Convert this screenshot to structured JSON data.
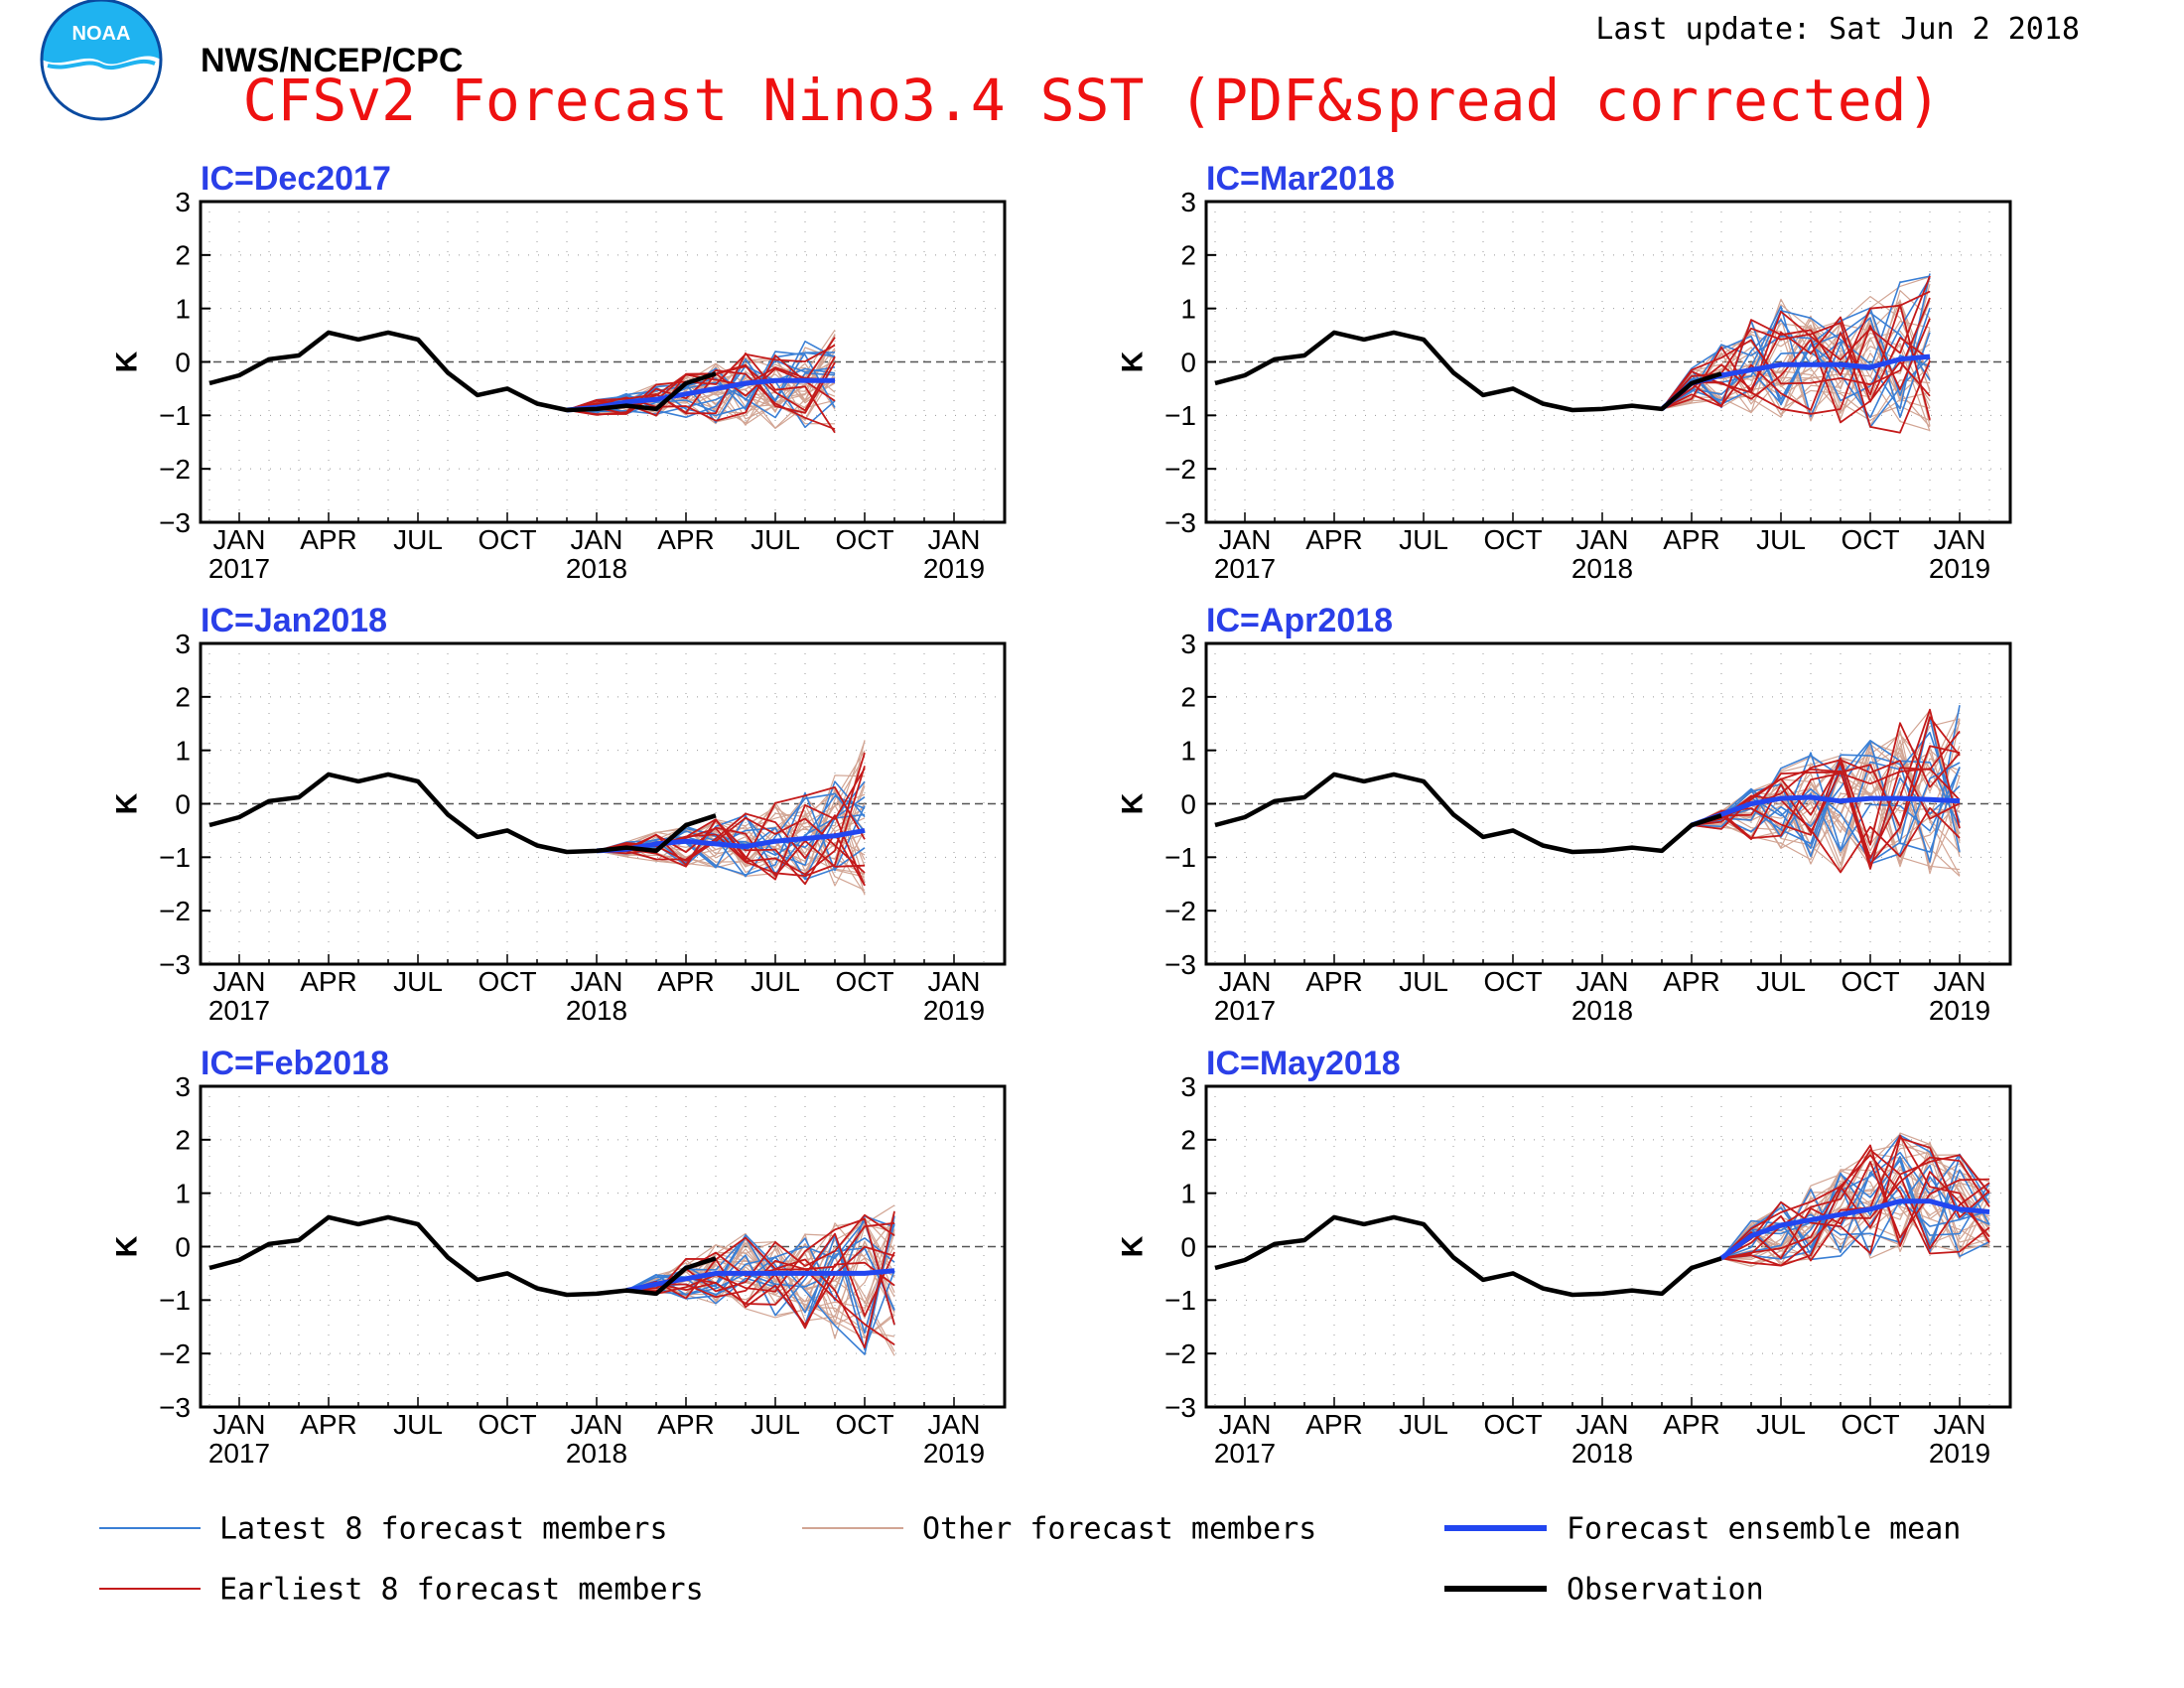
{
  "header": {
    "agency": "NWS/NCEP/CPC",
    "title": "CFSv2 Forecast Nino3.4 SST (PDF&spread corrected)",
    "last_update": "Last update: Sat Jun 2 2018",
    "logo_text": "NOAA",
    "title_color": "#ee1111",
    "ic_color": "#2a3fe8"
  },
  "legend": {
    "items": [
      {
        "label": "Latest 8 forecast members",
        "color": "#3a7fd5"
      },
      {
        "label": "Other forecast members",
        "color": "#d2a594"
      },
      {
        "label": "Forecast ensemble mean",
        "color": "#2246f0"
      },
      {
        "label": "Earliest 8 forecast members",
        "color": "#c41a1a"
      },
      {
        "label": "Observation",
        "color": "#000000"
      }
    ]
  },
  "chart_data": {
    "type": "line",
    "ylabel": "K",
    "ylim": [
      -3,
      3
    ],
    "yticks": [
      "3",
      "2",
      "1",
      "0",
      "−1",
      "−2",
      "−3"
    ],
    "x_month_labels": [
      "JAN",
      "APR",
      "JUL",
      "OCT",
      "JAN",
      "APR",
      "JUL",
      "OCT",
      "JAN"
    ],
    "x_year_labels": [
      "2017",
      "2018",
      "2019"
    ],
    "observation": {
      "name": "Observation",
      "x": [
        "2016-12",
        "2017-01",
        "2017-02",
        "2017-03",
        "2017-04",
        "2017-05",
        "2017-06",
        "2017-07",
        "2017-08",
        "2017-09",
        "2017-10",
        "2017-11",
        "2017-12",
        "2018-01",
        "2018-02",
        "2018-03",
        "2018-04",
        "2018-05"
      ],
      "values": [
        -0.4,
        -0.25,
        0.05,
        0.12,
        0.55,
        0.42,
        0.55,
        0.42,
        -0.2,
        -0.62,
        -0.5,
        -0.78,
        -0.9,
        -0.88,
        -0.82,
        -0.88,
        -0.4,
        -0.22
      ]
    },
    "panels": [
      {
        "ic": "IC=Dec2017",
        "forecast_x": [
          "2017-12",
          "2018-01",
          "2018-02",
          "2018-03",
          "2018-04",
          "2018-05",
          "2018-06",
          "2018-07",
          "2018-08",
          "2018-09"
        ],
        "ensemble_mean": [
          -0.9,
          -0.85,
          -0.75,
          -0.7,
          -0.6,
          -0.5,
          -0.4,
          -0.35,
          -0.35,
          -0.35
        ],
        "spread_lower": [
          -0.9,
          -1.0,
          -1.0,
          -1.05,
          -1.1,
          -1.2,
          -1.25,
          -1.3,
          -1.4,
          -1.5
        ],
        "spread_upper": [
          -0.9,
          -0.7,
          -0.55,
          -0.4,
          -0.2,
          0.0,
          0.2,
          0.35,
          0.5,
          0.7
        ]
      },
      {
        "ic": "IC=Mar2018",
        "forecast_x": [
          "2018-03",
          "2018-04",
          "2018-05",
          "2018-06",
          "2018-07",
          "2018-08",
          "2018-09",
          "2018-10",
          "2018-11",
          "2018-12"
        ],
        "ensemble_mean": [
          -0.88,
          -0.4,
          -0.25,
          -0.15,
          -0.05,
          -0.05,
          -0.05,
          -0.1,
          0.05,
          0.1
        ],
        "spread_lower": [
          -0.88,
          -0.8,
          -0.9,
          -1.0,
          -1.1,
          -1.2,
          -1.25,
          -1.3,
          -1.4,
          -1.5
        ],
        "spread_upper": [
          -0.88,
          -0.1,
          0.4,
          0.9,
          1.3,
          1.1,
          1.0,
          1.3,
          1.6,
          1.8
        ]
      },
      {
        "ic": "IC=Jan2018",
        "forecast_x": [
          "2018-01",
          "2018-02",
          "2018-03",
          "2018-04",
          "2018-05",
          "2018-06",
          "2018-07",
          "2018-08",
          "2018-09",
          "2018-10"
        ],
        "ensemble_mean": [
          -0.88,
          -0.85,
          -0.75,
          -0.7,
          -0.75,
          -0.8,
          -0.7,
          -0.65,
          -0.6,
          -0.5
        ],
        "spread_lower": [
          -0.88,
          -1.0,
          -1.1,
          -1.2,
          -1.3,
          -1.4,
          -1.5,
          -1.55,
          -1.7,
          -1.8
        ],
        "spread_upper": [
          -0.88,
          -0.7,
          -0.5,
          -0.35,
          -0.2,
          -0.1,
          0.1,
          0.3,
          0.6,
          1.4
        ]
      },
      {
        "ic": "IC=Apr2018",
        "forecast_x": [
          "2018-04",
          "2018-05",
          "2018-06",
          "2018-07",
          "2018-08",
          "2018-09",
          "2018-10",
          "2018-11",
          "2018-12",
          "2019-01"
        ],
        "ensemble_mean": [
          -0.4,
          -0.2,
          0.0,
          0.1,
          0.12,
          0.05,
          0.1,
          0.1,
          0.08,
          0.05
        ],
        "spread_lower": [
          -0.4,
          -0.5,
          -0.7,
          -0.9,
          -1.2,
          -1.4,
          -1.4,
          -1.3,
          -1.4,
          -1.5
        ],
        "spread_upper": [
          -0.4,
          -0.1,
          0.3,
          0.7,
          1.0,
          1.1,
          1.3,
          1.6,
          1.9,
          2.0
        ]
      },
      {
        "ic": "IC=Feb2018",
        "forecast_x": [
          "2018-02",
          "2018-03",
          "2018-04",
          "2018-05",
          "2018-06",
          "2018-07",
          "2018-08",
          "2018-09",
          "2018-10",
          "2018-11"
        ],
        "ensemble_mean": [
          -0.82,
          -0.7,
          -0.6,
          -0.5,
          -0.5,
          -0.5,
          -0.5,
          -0.5,
          -0.5,
          -0.45
        ],
        "spread_lower": [
          -0.82,
          -0.9,
          -1.0,
          -1.1,
          -1.2,
          -1.4,
          -1.6,
          -1.8,
          -2.1,
          -2.2
        ],
        "spread_upper": [
          -0.82,
          -0.5,
          -0.2,
          0.1,
          0.3,
          0.2,
          0.3,
          0.5,
          0.7,
          0.85
        ]
      },
      {
        "ic": "IC=May2018",
        "forecast_x": [
          "2018-05",
          "2018-06",
          "2018-07",
          "2018-08",
          "2018-09",
          "2018-10",
          "2018-11",
          "2018-12",
          "2019-01",
          "2019-02"
        ],
        "ensemble_mean": [
          -0.22,
          0.2,
          0.4,
          0.5,
          0.6,
          0.7,
          0.85,
          0.85,
          0.7,
          0.65
        ],
        "spread_lower": [
          -0.22,
          -0.4,
          -0.4,
          -0.3,
          -0.3,
          -0.3,
          -0.2,
          -0.2,
          -0.3,
          -0.2
        ],
        "spread_upper": [
          -0.22,
          0.5,
          0.9,
          1.3,
          1.7,
          2.0,
          2.2,
          2.3,
          1.8,
          1.3
        ]
      }
    ]
  }
}
